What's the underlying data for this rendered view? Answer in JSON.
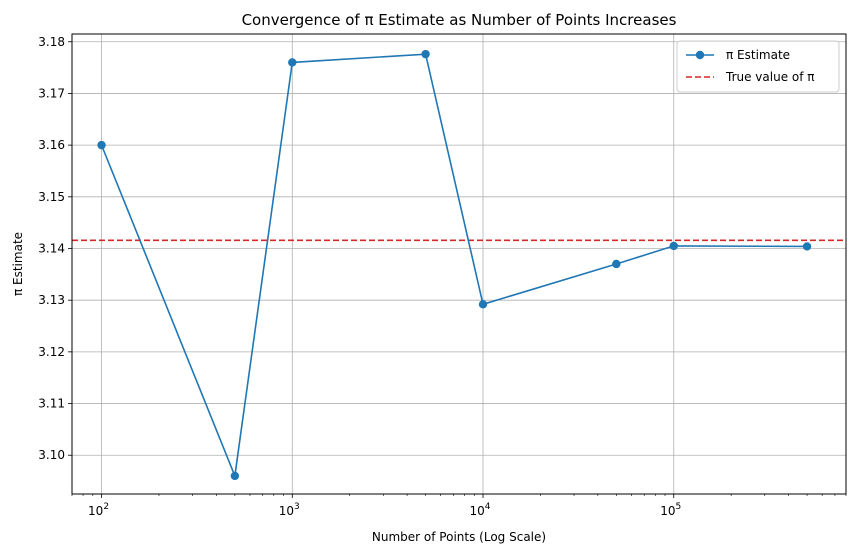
{
  "chart_data": {
    "type": "line",
    "title": "Convergence of π Estimate as Number of Points Increases",
    "xlabel": "Number of Points (Log Scale)",
    "ylabel": "π Estimate",
    "xscale": "log",
    "xlim": [
      70,
      800000
    ],
    "ylim": [
      3.0925,
      3.1815
    ],
    "grid": true,
    "legend_position": "top-right",
    "x_ticks": [
      100,
      1000,
      10000,
      100000
    ],
    "x_tick_labels": [
      {
        "base": "10",
        "exp": "2"
      },
      {
        "base": "10",
        "exp": "3"
      },
      {
        "base": "10",
        "exp": "4"
      },
      {
        "base": "10",
        "exp": "5"
      }
    ],
    "y_ticks": [
      3.1,
      3.11,
      3.12,
      3.13,
      3.14,
      3.15,
      3.16,
      3.17,
      3.18
    ],
    "y_tick_labels": [
      "3.10",
      "3.11",
      "3.12",
      "3.13",
      "3.14",
      "3.15",
      "3.16",
      "3.17",
      "3.18"
    ],
    "series": [
      {
        "name": "π Estimate",
        "color": "#1f77b4",
        "style": "solid",
        "marker": "circle",
        "x": [
          100,
          500,
          1000,
          5000,
          10000,
          50000,
          100000,
          500000
        ],
        "y": [
          3.16,
          3.096,
          3.176,
          3.1776,
          3.1292,
          3.137,
          3.1405,
          3.1404
        ]
      }
    ],
    "reference_lines": [
      {
        "name": "True value of π",
        "color": "#d62728",
        "style": "dashed",
        "y": 3.14159
      }
    ]
  }
}
